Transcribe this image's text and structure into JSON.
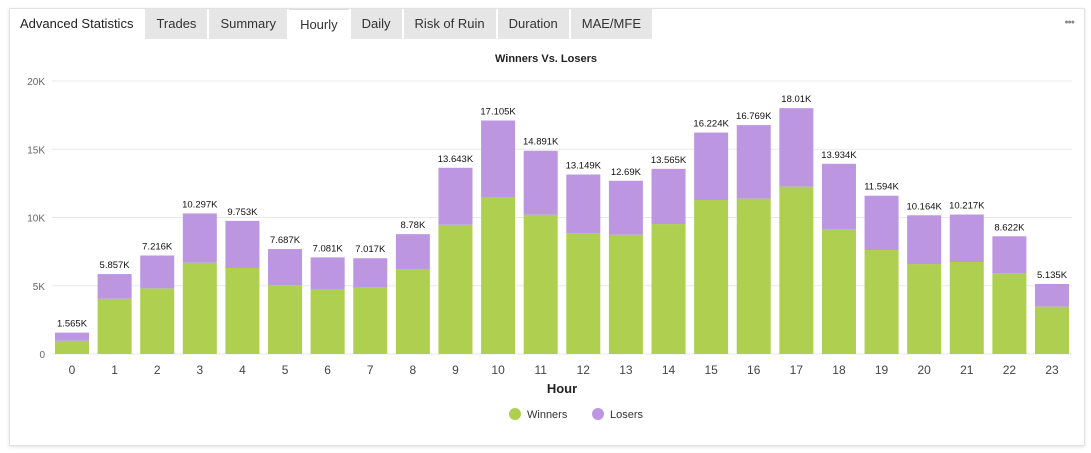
{
  "tabs": {
    "title": "Advanced Statistics",
    "items": [
      "Trades",
      "Summary",
      "Hourly",
      "Daily",
      "Risk of Ruin",
      "Duration",
      "MAE/MFE"
    ],
    "active": "Hourly"
  },
  "colors": {
    "winners": "#aecf4f",
    "losers": "#bc96e1"
  },
  "chart_data": {
    "type": "bar",
    "stacked": true,
    "title": "Winners Vs. Losers",
    "xlabel": "Hour",
    "ylabel": "",
    "ylim": [
      0,
      20000
    ],
    "yticks": [
      0,
      5000,
      10000,
      15000,
      20000
    ],
    "ytick_labels": [
      "0",
      "5K",
      "10K",
      "15K",
      "20K"
    ],
    "categories": [
      "0",
      "1",
      "2",
      "3",
      "4",
      "5",
      "6",
      "7",
      "8",
      "9",
      "10",
      "11",
      "12",
      "13",
      "14",
      "15",
      "16",
      "17",
      "18",
      "19",
      "20",
      "21",
      "22",
      "23"
    ],
    "totals": [
      1565,
      5857,
      7216,
      10297,
      9753,
      7687,
      7081,
      7017,
      8780,
      13643,
      17105,
      14891,
      13149,
      12690,
      13565,
      16224,
      16769,
      18010,
      13934,
      11594,
      10164,
      10217,
      8622,
      5135
    ],
    "total_labels": [
      "1.565K",
      "5.857K",
      "7.216K",
      "10.297K",
      "9.753K",
      "7.687K",
      "7.081K",
      "7.017K",
      "8.78K",
      "13.643K",
      "17.105K",
      "14.891K",
      "13.149K",
      "12.69K",
      "13.565K",
      "16.224K",
      "16.769K",
      "18.01K",
      "13.934K",
      "11.594K",
      "10.164K",
      "10.217K",
      "8.622K",
      "5.135K"
    ],
    "series": [
      {
        "name": "Winners",
        "values": [
          970,
          4050,
          4810,
          6690,
          6300,
          5050,
          4760,
          4910,
          6230,
          9470,
          11500,
          10200,
          8860,
          8740,
          9520,
          11280,
          11380,
          12260,
          9160,
          7620,
          6590,
          6740,
          5930,
          3470
        ]
      },
      {
        "name": "Losers",
        "values": [
          595,
          1807,
          2406,
          3607,
          3453,
          2637,
          2321,
          2107,
          2550,
          4173,
          5605,
          4691,
          4289,
          3950,
          4045,
          4944,
          5389,
          5750,
          4774,
          3974,
          3574,
          3477,
          2692,
          1665
        ]
      }
    ],
    "legend": "bottom-center",
    "grid": true
  }
}
